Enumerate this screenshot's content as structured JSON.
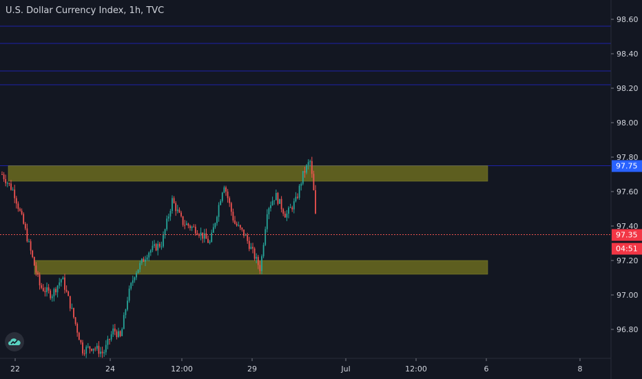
{
  "header": {
    "title": "U.S. Dollar Currency Index, 1h, TVC"
  },
  "price_badges": {
    "level": "97.75",
    "last": "97.35",
    "countdown": "04:51"
  },
  "colors": {
    "background": "#131722",
    "up": "#26a69a",
    "down": "#ef5350",
    "zone": "#6b6b1e",
    "hline": "#1e22aa",
    "level_badge": "#2962ff",
    "last_badge": "#f23645"
  },
  "logo": {
    "icon": "tradingview-cloud-icon"
  },
  "chart_data": {
    "type": "candlestick",
    "title": "U.S. Dollar Currency Index, 1h, TVC",
    "y_ticks": [
      "98.60",
      "98.40",
      "98.20",
      "98.00",
      "97.80",
      "97.60",
      "97.40",
      "97.20",
      "97.00",
      "96.80"
    ],
    "y_range": [
      96.64,
      98.69
    ],
    "x_ticks": [
      "22",
      "24",
      "12:00",
      "29",
      "Jul",
      "12:00",
      "6",
      "8"
    ],
    "horizontal_lines": [
      98.56,
      98.46,
      98.3,
      98.22,
      97.75
    ],
    "zones": [
      {
        "from": 97.66,
        "to": 97.75
      },
      {
        "from": 97.12,
        "to": 97.2
      }
    ],
    "last_price": 97.35,
    "key_points": [
      {
        "label": "start",
        "value": 97.7
      },
      {
        "label": "low",
        "value": 96.65
      },
      {
        "label": "high",
        "value": 97.8
      },
      {
        "label": "last",
        "value": 97.35
      }
    ]
  }
}
